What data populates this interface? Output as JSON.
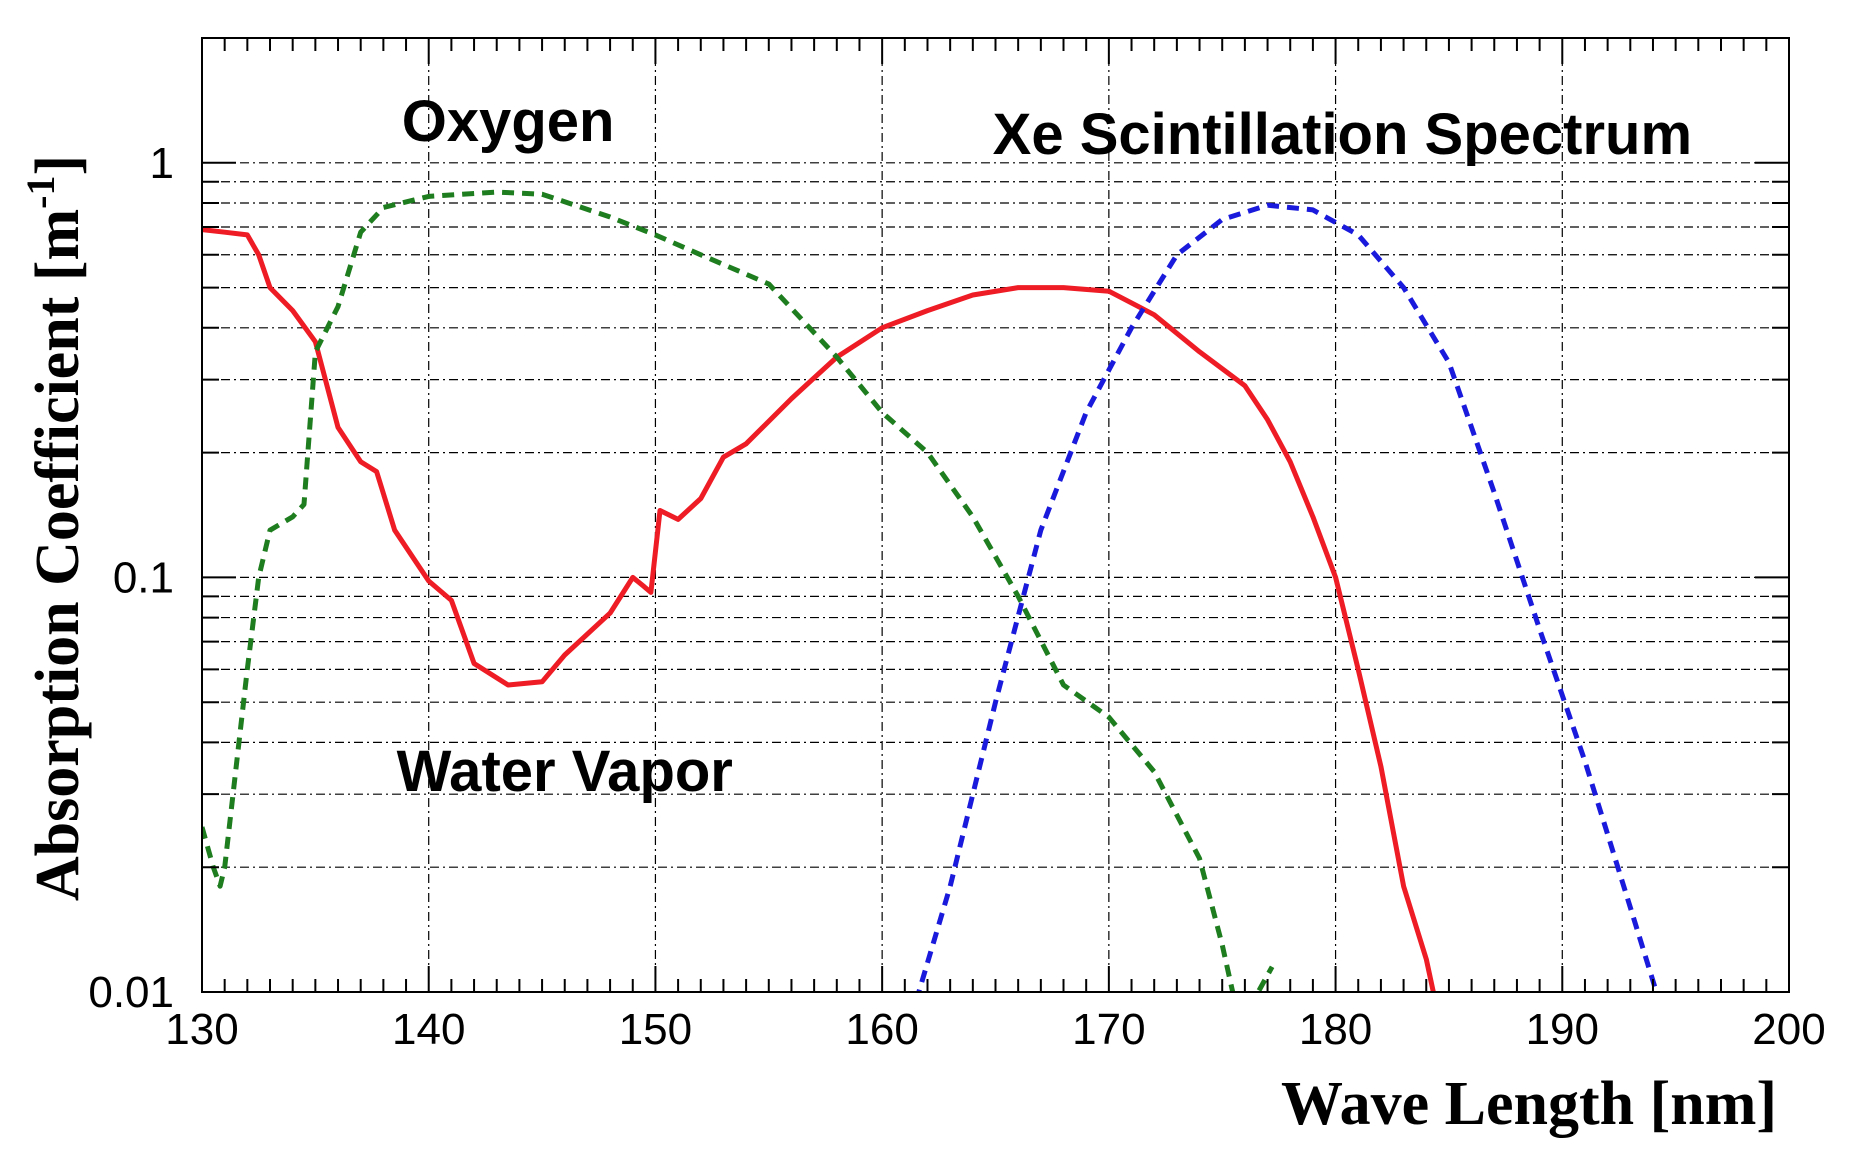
{
  "chart_data": {
    "type": "line",
    "xlabel": "Wave Length [nm]",
    "ylabel": "Absorption Coefficient [m",
    "ylabel_sup": "-1",
    "ylabel_end": "]",
    "xlim": [
      130,
      200
    ],
    "ylim": [
      0.01,
      2.0
    ],
    "yscale": "log",
    "grid": true,
    "x_ticks": [
      130,
      140,
      150,
      160,
      170,
      180,
      190,
      200
    ],
    "x_tick_labels": [
      "130",
      "140",
      "150",
      "160",
      "170",
      "180",
      "190",
      "200"
    ],
    "y_tick_labels": [
      {
        "value": 1,
        "label": "1"
      },
      {
        "value": 0.1,
        "label": "0.1"
      },
      {
        "value": 0.01,
        "label": "0.01"
      }
    ],
    "annotations": [
      {
        "text": "Oxygen",
        "x": 143.5,
        "y": 1.13
      },
      {
        "text": "Xe Scintillation Spectrum",
        "x": 180.3,
        "y": 1.05
      },
      {
        "text": "Water Vapor",
        "x": 146.0,
        "y": 0.0305
      }
    ],
    "series": [
      {
        "key": "water_vapor",
        "color": "#ee1c24",
        "style": "solid",
        "points": [
          [
            130,
            0.69
          ],
          [
            131,
            0.68
          ],
          [
            132,
            0.67
          ],
          [
            132.5,
            0.6
          ],
          [
            133,
            0.5
          ],
          [
            134,
            0.44
          ],
          [
            135,
            0.37
          ],
          [
            136,
            0.23
          ],
          [
            137,
            0.19
          ],
          [
            137.7,
            0.18
          ],
          [
            138.5,
            0.13
          ],
          [
            140,
            0.098
          ],
          [
            141,
            0.088
          ],
          [
            142,
            0.062
          ],
          [
            143.5,
            0.055
          ],
          [
            145,
            0.056
          ],
          [
            146,
            0.065
          ],
          [
            148,
            0.082
          ],
          [
            149,
            0.1
          ],
          [
            149.5,
            0.095
          ],
          [
            149.8,
            0.092
          ],
          [
            150.2,
            0.145
          ],
          [
            151,
            0.138
          ],
          [
            152,
            0.155
          ],
          [
            153,
            0.195
          ],
          [
            154,
            0.21
          ],
          [
            156,
            0.27
          ],
          [
            158,
            0.34
          ],
          [
            160,
            0.4
          ],
          [
            162,
            0.44
          ],
          [
            164,
            0.48
          ],
          [
            166,
            0.5
          ],
          [
            168,
            0.5
          ],
          [
            170,
            0.49
          ],
          [
            172,
            0.43
          ],
          [
            174,
            0.35
          ],
          [
            176,
            0.29
          ],
          [
            177,
            0.24
          ],
          [
            178,
            0.19
          ],
          [
            179,
            0.14
          ],
          [
            180,
            0.1
          ],
          [
            181,
            0.06
          ],
          [
            182,
            0.035
          ],
          [
            183,
            0.018
          ],
          [
            184,
            0.012
          ],
          [
            184.4,
            0.0095
          ]
        ]
      },
      {
        "key": "oxygen",
        "color": "#1e7d1e",
        "style": "dashed",
        "points": [
          [
            130,
            0.025
          ],
          [
            130.5,
            0.02
          ],
          [
            130.8,
            0.018
          ],
          [
            131,
            0.02
          ],
          [
            132,
            0.06
          ],
          [
            132.5,
            0.1
          ],
          [
            133,
            0.13
          ],
          [
            134,
            0.14
          ],
          [
            134.5,
            0.15
          ],
          [
            135,
            0.35
          ],
          [
            136,
            0.45
          ],
          [
            137,
            0.68
          ],
          [
            138,
            0.78
          ],
          [
            140,
            0.83
          ],
          [
            143,
            0.85
          ],
          [
            145,
            0.84
          ],
          [
            148,
            0.74
          ],
          [
            150,
            0.67
          ],
          [
            152,
            0.6
          ],
          [
            155,
            0.51
          ],
          [
            158,
            0.34
          ],
          [
            160,
            0.25
          ],
          [
            162,
            0.2
          ],
          [
            164,
            0.14
          ],
          [
            166,
            0.09
          ],
          [
            168,
            0.055
          ],
          [
            170,
            0.046
          ],
          [
            172,
            0.034
          ],
          [
            174,
            0.021
          ],
          [
            175,
            0.013
          ],
          [
            175.5,
            0.0098
          ],
          [
            176.5,
            0.0098
          ],
          [
            177.2,
            0.0115
          ]
        ]
      },
      {
        "key": "xe_spectrum",
        "color": "#1a1adc",
        "style": "dashed",
        "points": [
          [
            161.5,
            0.0095
          ],
          [
            163,
            0.018
          ],
          [
            165,
            0.05
          ],
          [
            167,
            0.13
          ],
          [
            169,
            0.25
          ],
          [
            171,
            0.4
          ],
          [
            173,
            0.6
          ],
          [
            175,
            0.73
          ],
          [
            177,
            0.79
          ],
          [
            179,
            0.77
          ],
          [
            181,
            0.67
          ],
          [
            183,
            0.5
          ],
          [
            185,
            0.33
          ],
          [
            187,
            0.16
          ],
          [
            189,
            0.075
          ],
          [
            191,
            0.036
          ],
          [
            193,
            0.016
          ],
          [
            194.2,
            0.0098
          ]
        ]
      }
    ]
  }
}
